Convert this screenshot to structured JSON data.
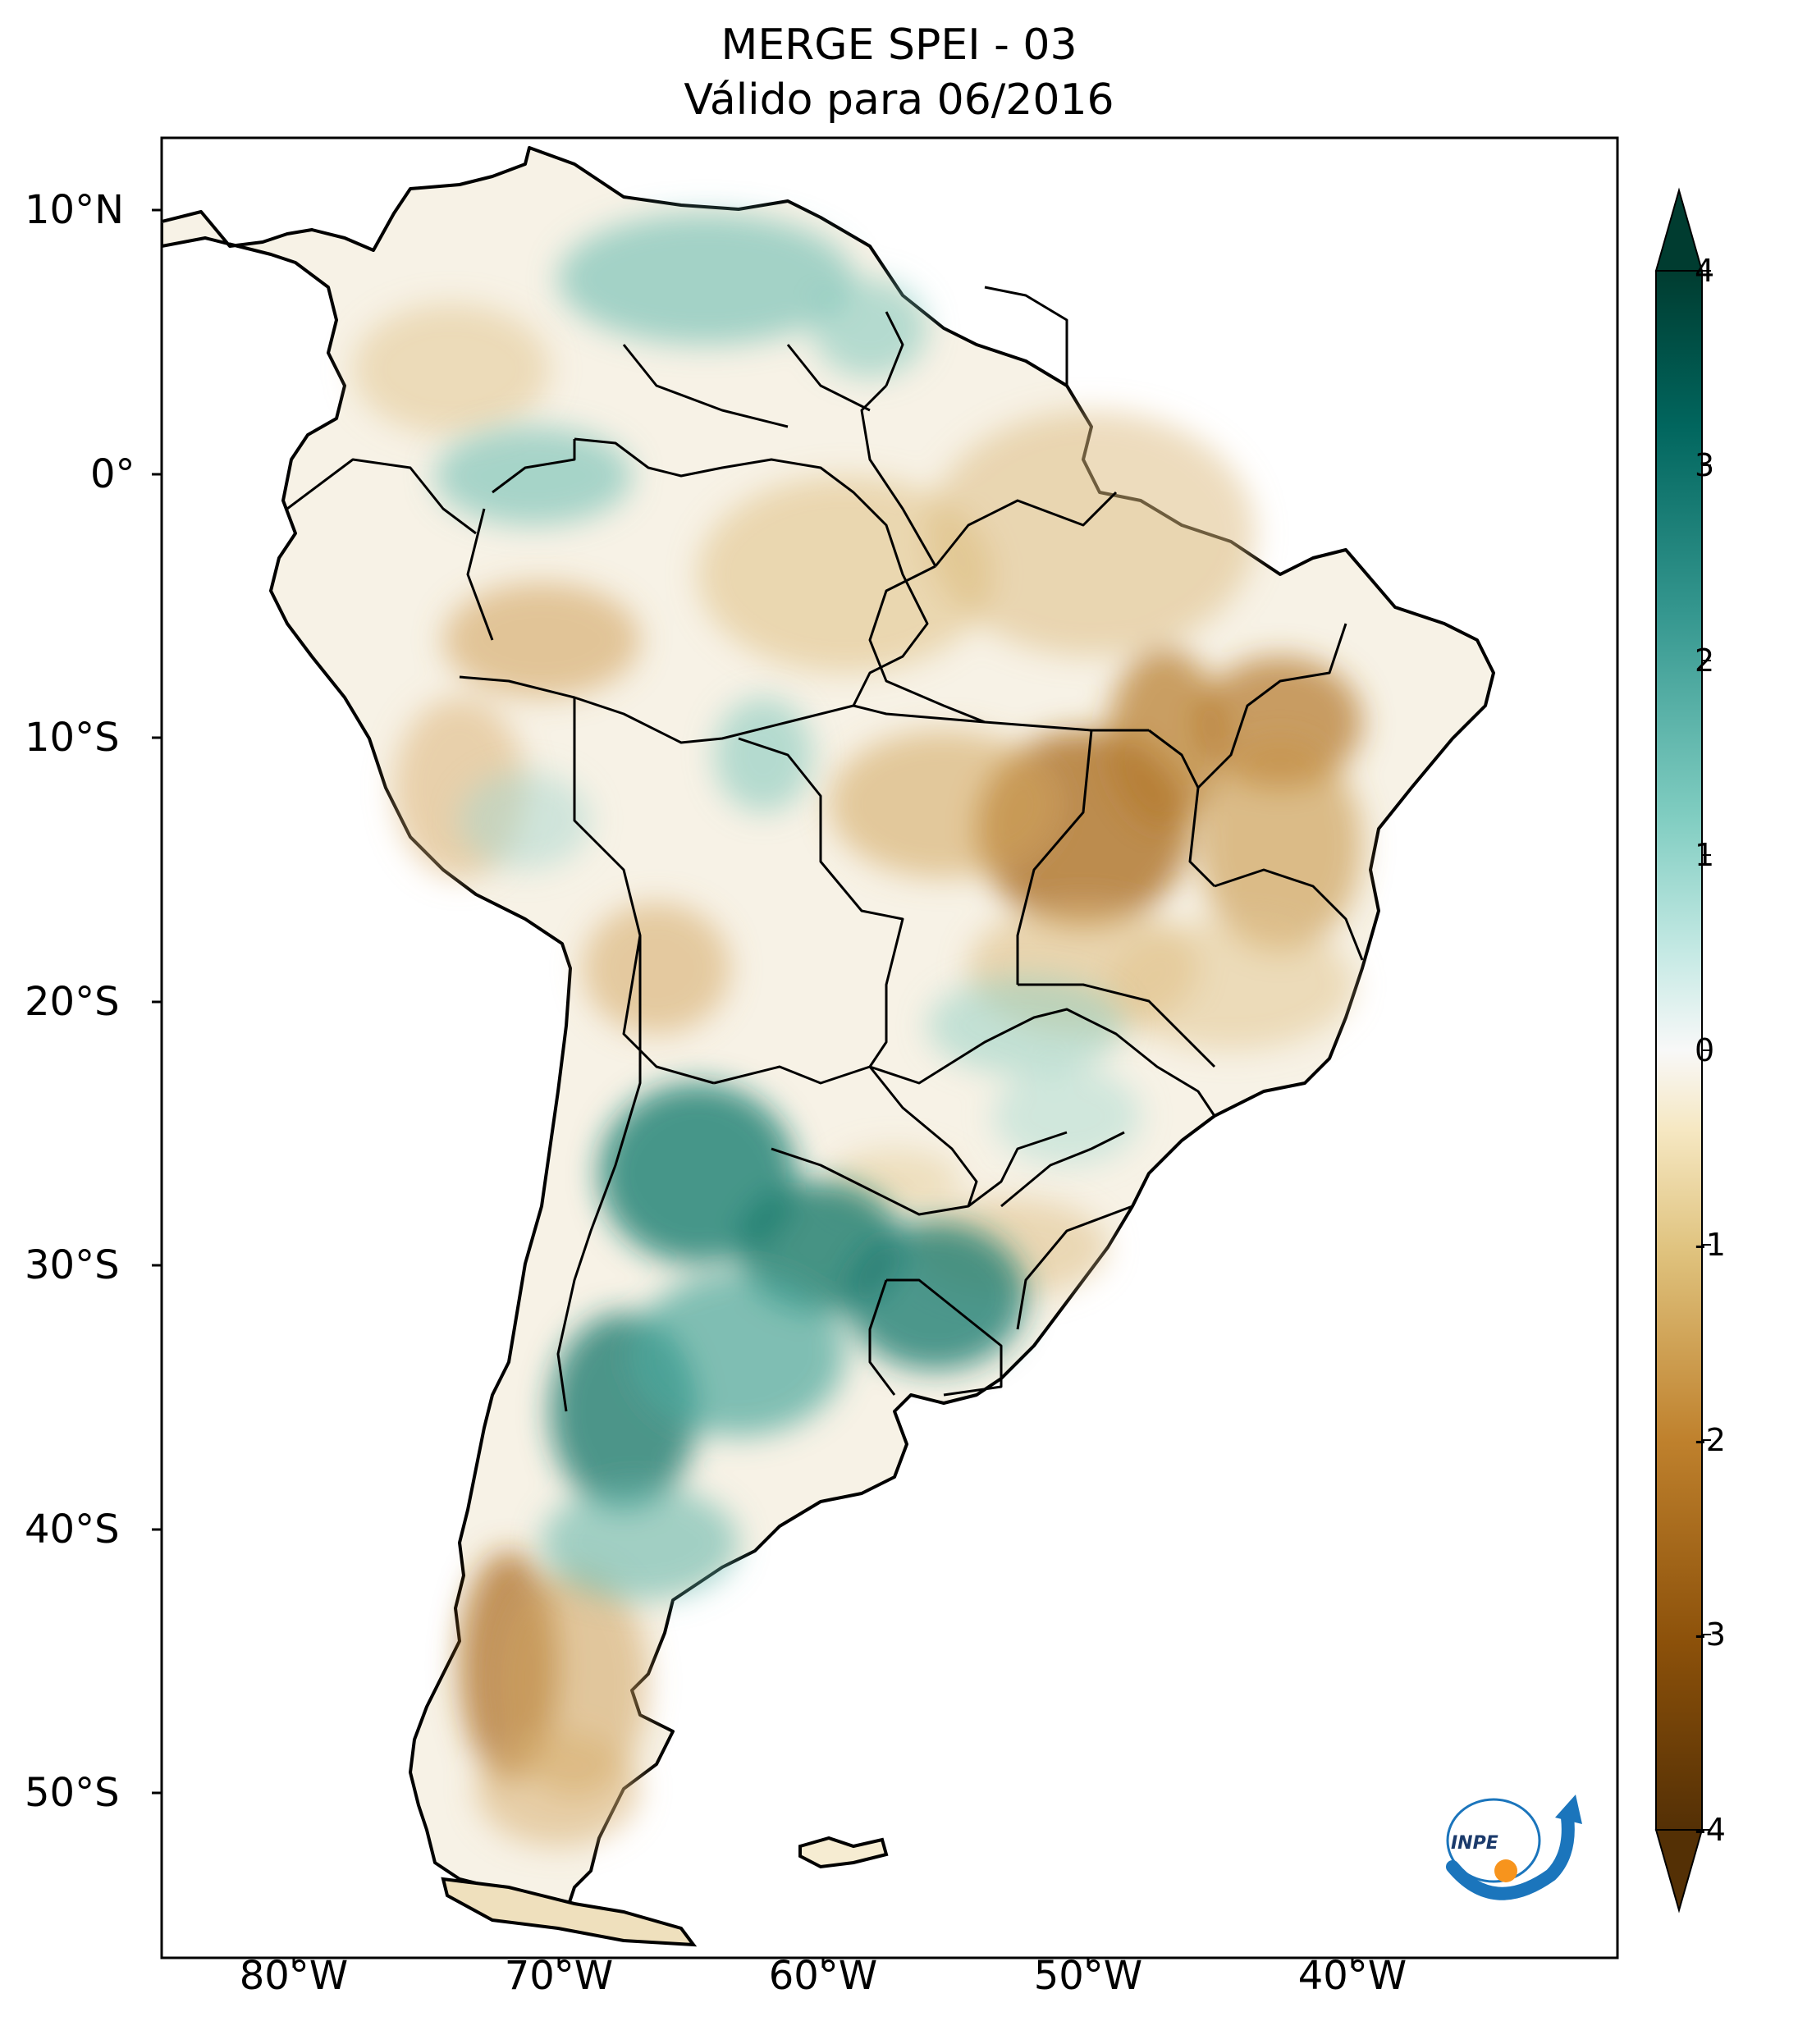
{
  "title": {
    "line1": "MERGE   SPEI - 03",
    "line2": "Válido para 06/2016"
  },
  "map": {
    "region": "South America",
    "variable": "SPEI - 03",
    "lat_ticks": [
      "10°N",
      "0°",
      "10°S",
      "20°S",
      "30°S",
      "40°S",
      "50°S"
    ],
    "lon_ticks": [
      "80°W",
      "70°W",
      "60°W",
      "50°W",
      "40°W"
    ],
    "extent": {
      "lon_min": -85,
      "lon_max": -30,
      "lat_min": -56,
      "lat_max": 13
    }
  },
  "colorbar": {
    "ticks": [
      "4",
      "3",
      "2",
      "1",
      "0",
      "-1",
      "-2",
      "-3",
      "-4"
    ],
    "min": -4,
    "max": 4,
    "colors": [
      "#543005",
      "#8c510a",
      "#bf812d",
      "#dfc27d",
      "#f6e8c3",
      "#f5f5f5",
      "#c7eae5",
      "#80cdc1",
      "#35978f",
      "#01665e",
      "#003c30"
    ]
  },
  "logo": {
    "text": "INPE"
  }
}
